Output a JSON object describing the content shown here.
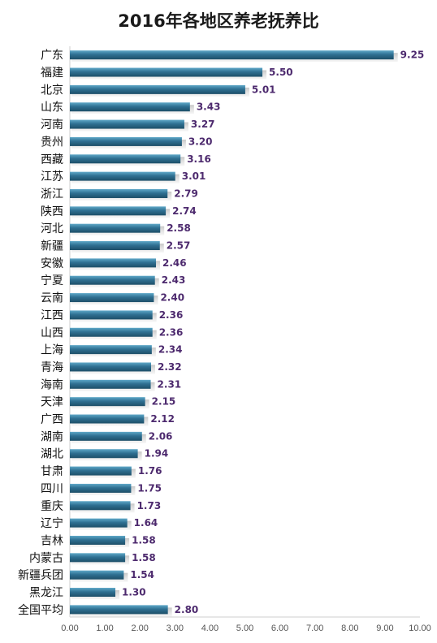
{
  "chart_data": {
    "type": "bar",
    "orientation": "horizontal",
    "title": "2016年各地区养老抚养比",
    "xlabel": "",
    "ylabel": "",
    "xlim": [
      0,
      10
    ],
    "ticks": [
      "0.00",
      "1.00",
      "2.00",
      "3.00",
      "4.00",
      "5.00",
      "6.00",
      "7.00",
      "8.00",
      "9.00",
      "10.00"
    ],
    "grid": false,
    "legend": "none",
    "bar_color": "#2e6b8a",
    "label_color": "#4d2a6e",
    "categories": [
      "广东",
      "福建",
      "北京",
      "山东",
      "河南",
      "贵州",
      "西藏",
      "江苏",
      "浙江",
      "陕西",
      "河北",
      "新疆",
      "安徽",
      "宁夏",
      "云南",
      "江西",
      "山西",
      "上海",
      "青海",
      "海南",
      "天津",
      "广西",
      "湖南",
      "湖北",
      "甘肃",
      "四川",
      "重庆",
      "辽宁",
      "吉林",
      "内蒙古",
      "新疆兵团",
      "黑龙江",
      "全国平均"
    ],
    "values": [
      9.25,
      5.5,
      5.01,
      3.43,
      3.27,
      3.2,
      3.16,
      3.01,
      2.79,
      2.74,
      2.58,
      2.57,
      2.46,
      2.43,
      2.4,
      2.36,
      2.36,
      2.34,
      2.32,
      2.31,
      2.15,
      2.12,
      2.06,
      1.94,
      1.76,
      1.75,
      1.73,
      1.64,
      1.58,
      1.58,
      1.54,
      1.3,
      2.8
    ],
    "value_labels": [
      "9.25",
      "5.50",
      "5.01",
      "3.43",
      "3.27",
      "3.20",
      "3.16",
      "3.01",
      "2.79",
      "2.74",
      "2.58",
      "2.57",
      "2.46",
      "2.43",
      "2.40",
      "2.36",
      "2.36",
      "2.34",
      "2.32",
      "2.31",
      "2.15",
      "2.12",
      "2.06",
      "1.94",
      "1.76",
      "1.75",
      "1.73",
      "1.64",
      "1.58",
      "1.58",
      "1.54",
      "1.30",
      "2.80"
    ]
  }
}
